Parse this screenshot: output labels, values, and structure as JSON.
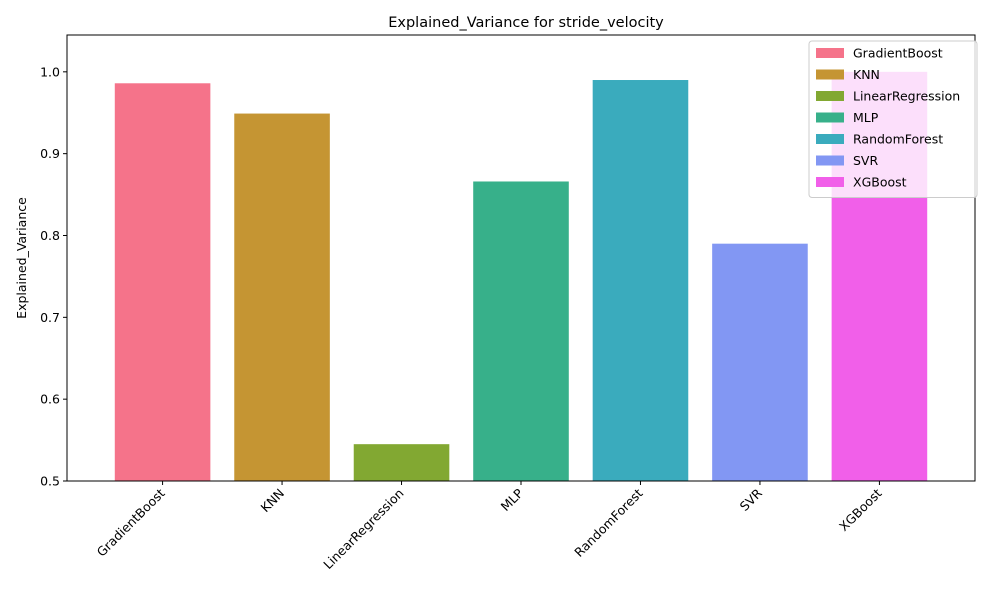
{
  "chart_data": {
    "type": "bar",
    "title": "Explained_Variance for stride_velocity",
    "xlabel": "",
    "ylabel": "Explained_Variance",
    "categories": [
      "GradientBoost",
      "KNN",
      "LinearRegression",
      "MLP",
      "RandomForest",
      "SVR",
      "XGBoost"
    ],
    "values": [
      0.986,
      0.949,
      0.545,
      0.866,
      0.99,
      0.79,
      1.0
    ],
    "colors": [
      "#f5738a",
      "#c59533",
      "#82a832",
      "#37b08a",
      "#3aabbd",
      "#8297f3",
      "#f15fe9"
    ],
    "ylim": [
      0.5,
      1.045
    ],
    "yticks": [
      "0.5",
      "0.6",
      "0.7",
      "0.8",
      "0.9",
      "1.0"
    ],
    "grid": false,
    "legend": {
      "position": "top-right",
      "entries": [
        "GradientBoost",
        "KNN",
        "LinearRegression",
        "MLP",
        "RandomForest",
        "SVR",
        "XGBoost"
      ]
    }
  }
}
